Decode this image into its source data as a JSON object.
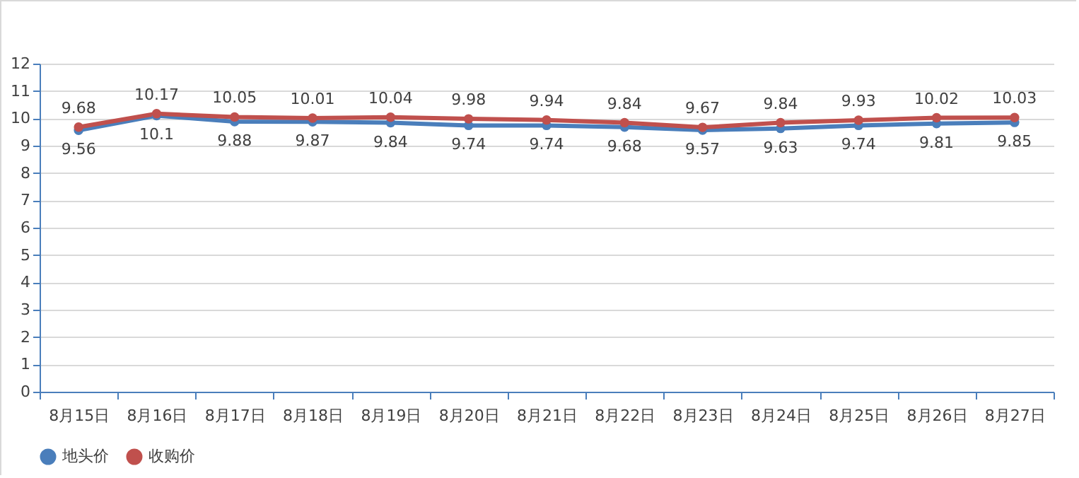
{
  "chart_data": {
    "type": "line",
    "categories": [
      "8月15日",
      "8月16日",
      "8月17日",
      "8月18日",
      "8月19日",
      "8月20日",
      "8月21日",
      "8月22日",
      "8月23日",
      "8月24日",
      "8月25日",
      "8月26日",
      "8月27日"
    ],
    "series": [
      {
        "name": "地头价",
        "color": "#4a7ebb",
        "values": [
          9.56,
          10.1,
          9.88,
          9.87,
          9.84,
          9.74,
          9.74,
          9.68,
          9.57,
          9.63,
          9.74,
          9.81,
          9.85
        ]
      },
      {
        "name": "收购价",
        "color": "#c0504d",
        "values": [
          9.68,
          10.17,
          10.05,
          10.01,
          10.04,
          9.98,
          9.94,
          9.84,
          9.67,
          9.84,
          9.93,
          10.02,
          10.03
        ]
      }
    ],
    "ylim": [
      0,
      12
    ],
    "yticks": [
      0,
      1,
      2,
      3,
      4,
      5,
      6,
      7,
      8,
      9,
      10,
      11,
      12
    ],
    "grid": "y",
    "legend": "bottom",
    "marker": "circle",
    "line_style": "solid",
    "data_labels": true
  }
}
